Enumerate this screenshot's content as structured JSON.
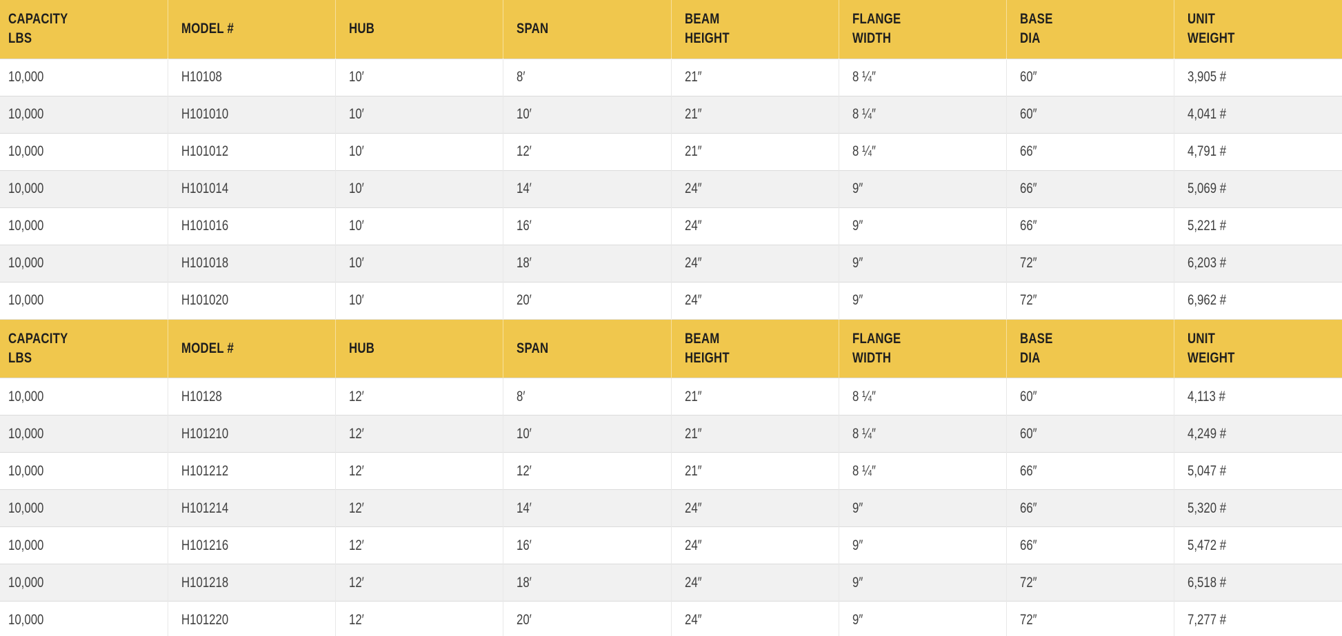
{
  "colors": {
    "header_background": "#F0C74D",
    "header_text": "#1E1E1E",
    "body_text": "#404040",
    "row_alternate_background": "#F1F1F1",
    "row_border": "#DBDBDB"
  },
  "columns": [
    {
      "id": "capacity-lbs",
      "lines": [
        "CAPACITY",
        "LBS"
      ]
    },
    {
      "id": "model-number",
      "lines": [
        "MODEL #"
      ]
    },
    {
      "id": "hub",
      "lines": [
        "HUB"
      ]
    },
    {
      "id": "span",
      "lines": [
        "SPAN"
      ]
    },
    {
      "id": "beam-height",
      "lines": [
        "BEAM",
        "HEIGHT"
      ]
    },
    {
      "id": "flange-width",
      "lines": [
        "FLANGE",
        "WIDTH"
      ]
    },
    {
      "id": "base-dia",
      "lines": [
        "BASE",
        "DIA"
      ]
    },
    {
      "id": "unit-weight",
      "lines": [
        "UNIT",
        "WEIGHT"
      ]
    }
  ],
  "tables": [
    {
      "name": "hub-10-spec-table",
      "rows": [
        [
          "10,000",
          "H10108",
          "10′",
          "8′",
          "21″",
          "8 ¼″",
          "60″",
          "3,905 #"
        ],
        [
          "10,000",
          "H101010",
          "10′",
          "10′",
          "21″",
          "8 ¼″",
          "60″",
          "4,041 #"
        ],
        [
          "10,000",
          "H101012",
          "10′",
          "12′",
          "21″",
          "8 ¼″",
          "66″",
          "4,791 #"
        ],
        [
          "10,000",
          "H101014",
          "10′",
          "14′",
          "24″",
          "9″",
          "66″",
          "5,069 #"
        ],
        [
          "10,000",
          "H101016",
          "10′",
          "16′",
          "24″",
          "9″",
          "66″",
          "5,221 #"
        ],
        [
          "10,000",
          "H101018",
          "10′",
          "18′",
          "24″",
          "9″",
          "72″",
          "6,203 #"
        ],
        [
          "10,000",
          "H101020",
          "10′",
          "20′",
          "24″",
          "9″",
          "72″",
          "6,962 #"
        ]
      ]
    },
    {
      "name": "hub-12-spec-table",
      "rows": [
        [
          "10,000",
          "H10128",
          "12′",
          "8′",
          "21″",
          "8 ¼″",
          "60″",
          "4,113 #"
        ],
        [
          "10,000",
          "H101210",
          "12′",
          "10′",
          "21″",
          "8 ¼″",
          "60″",
          "4,249 #"
        ],
        [
          "10,000",
          "H101212",
          "12′",
          "12′",
          "21″",
          "8 ¼″",
          "66″",
          "5,047 #"
        ],
        [
          "10,000",
          "H101214",
          "12′",
          "14′",
          "24″",
          "9″",
          "66″",
          "5,320 #"
        ],
        [
          "10,000",
          "H101216",
          "12′",
          "16′",
          "24″",
          "9″",
          "66″",
          "5,472 #"
        ],
        [
          "10,000",
          "H101218",
          "12′",
          "18′",
          "24″",
          "9″",
          "72″",
          "6,518 #"
        ],
        [
          "10,000",
          "H101220",
          "12′",
          "20′",
          "24″",
          "9″",
          "72″",
          "7,277 #"
        ]
      ]
    }
  ]
}
